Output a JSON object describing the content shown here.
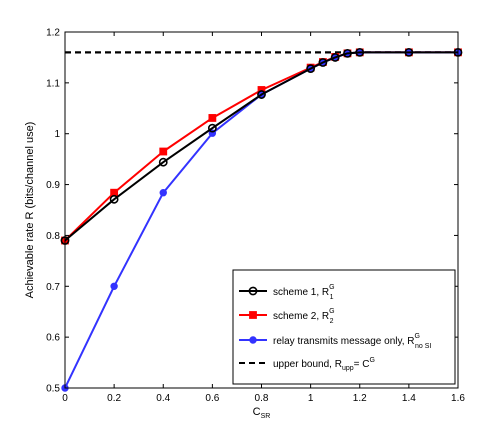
{
  "chart_data": {
    "type": "line",
    "xlabel": "C",
    "xlabel_sub": "SR",
    "ylabel": "Achievable rate R (bits/channel use)",
    "xlim": [
      0,
      1.6
    ],
    "ylim": [
      0.5,
      1.2
    ],
    "xticks": [
      "0",
      "0.2",
      "0.4",
      "0.6",
      "0.8",
      "1",
      "1.2",
      "1.4",
      "1.6"
    ],
    "yticks": [
      "0.5",
      "0.6",
      "0.7",
      "0.8",
      "0.9",
      "1",
      "1.1",
      "1.2"
    ],
    "grid": false,
    "legend_position": "bottom-right",
    "series": [
      {
        "name": "scheme 1, R",
        "name_sup": "G",
        "name_sub": "1",
        "color": "#000000",
        "marker": "circle",
        "x": [
          0,
          0.2,
          0.4,
          0.6,
          0.8,
          1.0,
          1.05,
          1.1,
          1.15,
          1.2,
          1.4,
          1.6
        ],
        "y": [
          0.79,
          0.871,
          0.944,
          1.011,
          1.077,
          1.128,
          1.14,
          1.15,
          1.158,
          1.16,
          1.16,
          1.16
        ]
      },
      {
        "name": "scheme 2, R",
        "name_sup": "G",
        "name_sub": "2",
        "color": "#ff0000",
        "marker": "square",
        "x": [
          0,
          0.2,
          0.4,
          0.6,
          0.8,
          1.0,
          1.05,
          1.1,
          1.15,
          1.2,
          1.4,
          1.6
        ],
        "y": [
          0.79,
          0.884,
          0.965,
          1.031,
          1.086,
          1.13,
          1.141,
          1.151,
          1.158,
          1.16,
          1.16,
          1.16
        ]
      },
      {
        "name": "relay transmits message only, R",
        "name_sup": "G",
        "name_sub": "no SI",
        "color": "#3333ff",
        "marker": "dot",
        "x": [
          0,
          0.2,
          0.4,
          0.6,
          0.8,
          1.0,
          1.05,
          1.1,
          1.15,
          1.2,
          1.4,
          1.6
        ],
        "y": [
          0.5,
          0.7,
          0.884,
          1.001,
          1.077,
          1.128,
          1.14,
          1.15,
          1.158,
          1.16,
          1.16,
          1.16
        ]
      },
      {
        "name": "upper bound, R",
        "name_sub": "upp",
        "name_suffix": "= C",
        "name_suffix_sup": "G",
        "color": "#000000",
        "style": "dashed",
        "x": [
          0,
          1.6
        ],
        "y": [
          1.16,
          1.16
        ]
      }
    ]
  }
}
